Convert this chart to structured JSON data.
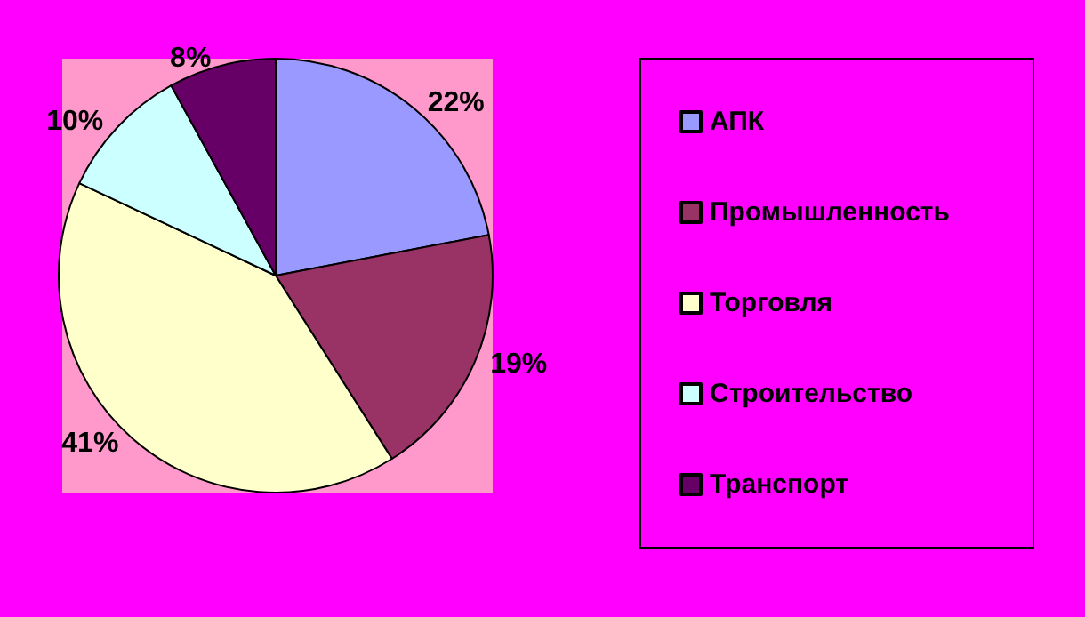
{
  "chart_data": {
    "type": "pie",
    "categories": [
      "АПК",
      "Промышленность",
      "Торговля",
      "Строительство",
      "Транспорт"
    ],
    "values": [
      22,
      19,
      41,
      10,
      8
    ],
    "value_labels": [
      "22%",
      "19%",
      "41%",
      "10%",
      "8%"
    ],
    "colors": [
      "#9999ff",
      "#993366",
      "#ffffcc",
      "#ccffff",
      "#660066"
    ],
    "legend": "right"
  }
}
